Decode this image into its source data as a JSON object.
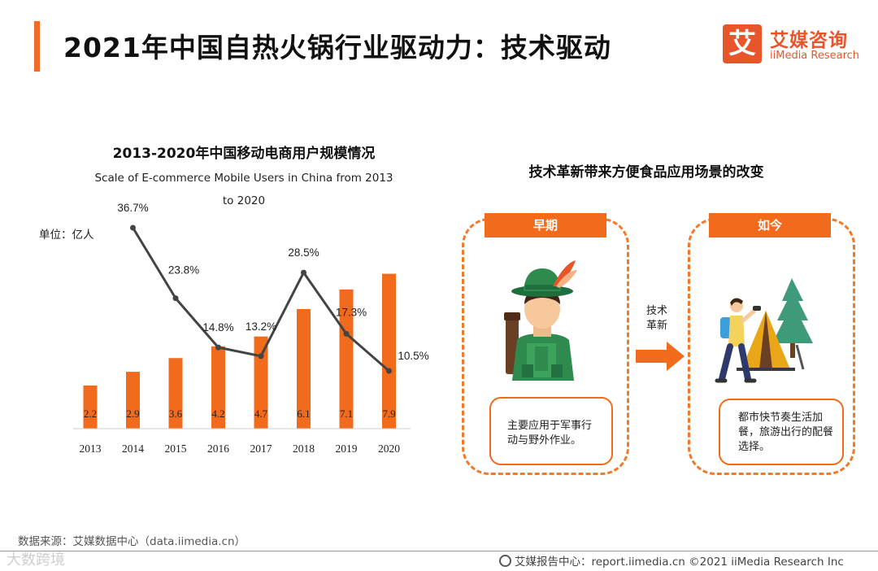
{
  "header": {
    "title": "2021年中国自热火锅行业驱动力：技术驱动"
  },
  "logo": {
    "mark": "艾",
    "cn": "艾媒咨询",
    "en": "iiMedia Research"
  },
  "chart_data": {
    "type": "bar",
    "title": "2013-2020年中国移动电商用户规模情况",
    "subtitle": "Scale of E-commerce Mobile Users in China from 2013 to 2020",
    "unit_label": "单位：亿人",
    "categories": [
      "2013",
      "2014",
      "2015",
      "2016",
      "2017",
      "2018",
      "2019",
      "2020"
    ],
    "series": [
      {
        "values": [
          2.2,
          2.9,
          3.6,
          4.2,
          4.7,
          6.1,
          7.1,
          7.9
        ],
        "color": "#f26a1b",
        "render": "bar"
      },
      {
        "values": [
          null,
          36.7,
          23.8,
          14.8,
          13.2,
          28.5,
          17.3,
          10.5
        ],
        "color": "#444444",
        "render": "line",
        "labels": [
          "",
          "36.7%",
          "23.8%",
          "14.8%",
          "13.2%",
          "28.5%",
          "17.3%",
          "10.5%"
        ]
      }
    ],
    "bar_labels": [
      "2.2",
      "2.9",
      "3.6",
      "4.2",
      "4.7",
      "6.1",
      "7.1",
      "7.9"
    ],
    "ylim": [
      0,
      9.5
    ],
    "grid": false,
    "legend": "none"
  },
  "panel": {
    "title": "技术革新带来方便食品应用场景的改变",
    "early": {
      "tag": "早期",
      "desc": "主要应用于军事行动与野外作业。"
    },
    "now": {
      "tag": "如今",
      "desc": "都市快节奏生活加餐，旅游出行的配餐选择。"
    },
    "arrow_label_line1": "技术",
    "arrow_label_line2": "革新"
  },
  "footer": {
    "source": "数据来源：艾媒数据中心（data.iimedia.cn）",
    "right": "艾媒报告中心：report.iimedia.cn   ©2021  iiMedia Research  Inc",
    "watermark": "大数跨境"
  },
  "colors": {
    "accent": "#f26a1b",
    "line": "#444444",
    "brand": "#e8552b"
  }
}
